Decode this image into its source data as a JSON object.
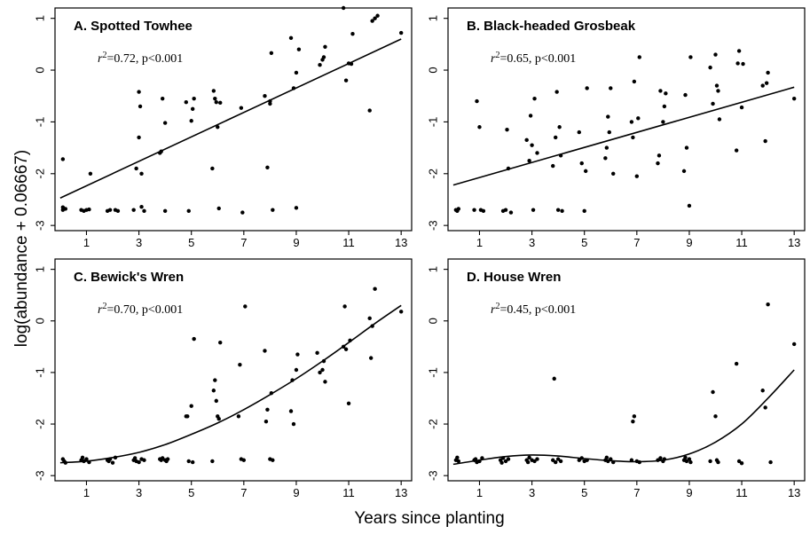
{
  "figure": {
    "ylabel": "log(abundance + 0.06667)",
    "xlabel": "Years since planting"
  },
  "chart_data": [
    {
      "type": "scatter",
      "title": "A.  Spotted Towhee",
      "stat_r2": "=0.72, p<0.001",
      "xlim": [
        -0.2,
        13.4
      ],
      "ylim": [
        -3.1,
        1.2
      ],
      "xticks": [
        1,
        3,
        5,
        7,
        9,
        11,
        13
      ],
      "yticks": [
        1,
        0,
        -1,
        -2,
        -3
      ],
      "fit": {
        "kind": "linear",
        "x": [
          0,
          13
        ],
        "y": [
          -2.47,
          0.6
        ]
      },
      "points": [
        [
          0.1,
          -1.72
        ],
        [
          0.1,
          -2.65
        ],
        [
          0.1,
          -2.7
        ],
        [
          0.2,
          -2.68
        ],
        [
          0.8,
          -2.7
        ],
        [
          0.9,
          -2.72
        ],
        [
          1.0,
          -2.7
        ],
        [
          1.1,
          -2.69
        ],
        [
          1.15,
          -2.0
        ],
        [
          1.8,
          -2.72
        ],
        [
          1.9,
          -2.7
        ],
        [
          2.1,
          -2.7
        ],
        [
          2.2,
          -2.72
        ],
        [
          2.8,
          -2.7
        ],
        [
          2.9,
          -1.9
        ],
        [
          3.0,
          -1.3
        ],
        [
          3.0,
          -0.42
        ],
        [
          3.05,
          -0.7
        ],
        [
          3.1,
          -2.0
        ],
        [
          3.1,
          -2.64
        ],
        [
          3.2,
          -2.72
        ],
        [
          3.8,
          -1.6
        ],
        [
          3.85,
          -1.57
        ],
        [
          3.9,
          -0.55
        ],
        [
          4.0,
          -1.02
        ],
        [
          4.0,
          -2.72
        ],
        [
          4.8,
          -0.62
        ],
        [
          4.9,
          -2.72
        ],
        [
          5.0,
          -0.98
        ],
        [
          5.05,
          -0.75
        ],
        [
          5.1,
          -0.55
        ],
        [
          5.8,
          -1.9
        ],
        [
          5.85,
          -0.4
        ],
        [
          5.9,
          -0.55
        ],
        [
          5.95,
          -0.62
        ],
        [
          6.0,
          -1.1
        ],
        [
          6.1,
          -0.63
        ],
        [
          6.05,
          -2.67
        ],
        [
          6.9,
          -0.73
        ],
        [
          6.95,
          -2.75
        ],
        [
          7.8,
          -0.5
        ],
        [
          7.9,
          -1.88
        ],
        [
          8.0,
          -0.6
        ],
        [
          8.0,
          -0.65
        ],
        [
          8.05,
          0.33
        ],
        [
          8.1,
          -2.7
        ],
        [
          8.8,
          0.62
        ],
        [
          8.9,
          -0.35
        ],
        [
          9.0,
          -0.05
        ],
        [
          9.0,
          -2.66
        ],
        [
          9.1,
          0.4
        ],
        [
          9.9,
          0.1
        ],
        [
          10.0,
          0.2
        ],
        [
          10.05,
          0.25
        ],
        [
          10.1,
          0.45
        ],
        [
          10.8,
          1.2
        ],
        [
          10.9,
          -0.2
        ],
        [
          11.0,
          0.13
        ],
        [
          11.1,
          0.12
        ],
        [
          11.15,
          0.7
        ],
        [
          11.8,
          -0.78
        ],
        [
          11.9,
          0.95
        ],
        [
          12.0,
          1.0
        ],
        [
          12.1,
          1.05
        ],
        [
          13.0,
          0.72
        ]
      ]
    },
    {
      "type": "scatter",
      "title": "B.  Black-headed Grosbeak",
      "stat_r2": "=0.65, p<0.001",
      "xlim": [
        -0.2,
        13.4
      ],
      "ylim": [
        -3.1,
        1.2
      ],
      "xticks": [
        1,
        3,
        5,
        7,
        9,
        11,
        13
      ],
      "yticks": [
        1,
        0,
        -1,
        -2,
        -3
      ],
      "fit": {
        "kind": "linear",
        "x": [
          0,
          13
        ],
        "y": [
          -2.22,
          -0.33
        ]
      },
      "points": [
        [
          0.1,
          -2.7
        ],
        [
          0.15,
          -2.72
        ],
        [
          0.2,
          -2.68
        ],
        [
          0.8,
          -2.7
        ],
        [
          0.9,
          -0.6
        ],
        [
          1.0,
          -1.1
        ],
        [
          1.05,
          -2.7
        ],
        [
          1.15,
          -2.72
        ],
        [
          1.9,
          -2.72
        ],
        [
          2.0,
          -2.7
        ],
        [
          2.05,
          -1.15
        ],
        [
          2.1,
          -1.9
        ],
        [
          2.2,
          -2.75
        ],
        [
          2.8,
          -1.35
        ],
        [
          2.9,
          -1.75
        ],
        [
          2.95,
          -0.88
        ],
        [
          3.0,
          -1.45
        ],
        [
          3.05,
          -2.7
        ],
        [
          3.1,
          -0.55
        ],
        [
          3.2,
          -1.6
        ],
        [
          3.8,
          -1.85
        ],
        [
          3.9,
          -1.3
        ],
        [
          3.95,
          -0.42
        ],
        [
          4.0,
          -2.7
        ],
        [
          4.05,
          -1.1
        ],
        [
          4.1,
          -1.65
        ],
        [
          4.15,
          -2.72
        ],
        [
          4.8,
          -1.2
        ],
        [
          4.9,
          -1.8
        ],
        [
          5.0,
          -2.72
        ],
        [
          5.05,
          -1.95
        ],
        [
          5.1,
          -0.35
        ],
        [
          5.8,
          -1.7
        ],
        [
          5.85,
          -1.5
        ],
        [
          5.9,
          -0.9
        ],
        [
          5.95,
          -1.2
        ],
        [
          6.0,
          -0.35
        ],
        [
          6.1,
          -2.0
        ],
        [
          6.8,
          -1.0
        ],
        [
          6.85,
          -1.3
        ],
        [
          6.9,
          -0.22
        ],
        [
          7.0,
          -2.05
        ],
        [
          7.05,
          -0.93
        ],
        [
          7.1,
          0.25
        ],
        [
          7.8,
          -1.8
        ],
        [
          7.85,
          -1.65
        ],
        [
          7.9,
          -0.4
        ],
        [
          8.0,
          -1.0
        ],
        [
          8.05,
          -0.7
        ],
        [
          8.1,
          -0.45
        ],
        [
          8.8,
          -1.95
        ],
        [
          8.85,
          -0.48
        ],
        [
          8.9,
          -1.5
        ],
        [
          9.0,
          -2.62
        ],
        [
          9.05,
          0.25
        ],
        [
          9.8,
          0.05
        ],
        [
          9.9,
          -0.65
        ],
        [
          10.0,
          0.3
        ],
        [
          10.05,
          -0.3
        ],
        [
          10.1,
          -0.4
        ],
        [
          10.15,
          -0.95
        ],
        [
          10.8,
          -1.55
        ],
        [
          10.85,
          0.13
        ],
        [
          10.9,
          0.37
        ],
        [
          11.0,
          -0.72
        ],
        [
          11.05,
          0.12
        ],
        [
          11.8,
          -0.3
        ],
        [
          11.9,
          -1.37
        ],
        [
          11.95,
          -0.25
        ],
        [
          12.0,
          -0.05
        ],
        [
          13.0,
          -0.55
        ]
      ]
    },
    {
      "type": "scatter",
      "title": "C.  Bewick's Wren",
      "stat_r2": "=0.70, p<0.001",
      "xlim": [
        -0.2,
        13.4
      ],
      "ylim": [
        -3.1,
        1.2
      ],
      "xticks": [
        1,
        3,
        5,
        7,
        9,
        11,
        13
      ],
      "yticks": [
        1,
        0,
        -1,
        -2,
        -3
      ],
      "fit": {
        "kind": "curve",
        "x": [
          0,
          1,
          2,
          3,
          4,
          5,
          6,
          7,
          8,
          9,
          10,
          11,
          12,
          13
        ],
        "y": [
          -2.75,
          -2.72,
          -2.65,
          -2.55,
          -2.4,
          -2.2,
          -1.98,
          -1.72,
          -1.43,
          -1.12,
          -0.78,
          -0.42,
          -0.05,
          0.3
        ]
      },
      "points": [
        [
          0.1,
          -2.68
        ],
        [
          0.15,
          -2.72
        ],
        [
          0.2,
          -2.75
        ],
        [
          0.8,
          -2.7
        ],
        [
          0.85,
          -2.65
        ],
        [
          0.9,
          -2.72
        ],
        [
          1.0,
          -2.68
        ],
        [
          1.1,
          -2.74
        ],
        [
          1.8,
          -2.7
        ],
        [
          1.85,
          -2.72
        ],
        [
          1.9,
          -2.68
        ],
        [
          2.0,
          -2.75
        ],
        [
          2.1,
          -2.65
        ],
        [
          2.8,
          -2.7
        ],
        [
          2.85,
          -2.66
        ],
        [
          2.9,
          -2.72
        ],
        [
          3.0,
          -2.74
        ],
        [
          3.1,
          -2.68
        ],
        [
          3.2,
          -2.7
        ],
        [
          3.8,
          -2.68
        ],
        [
          3.85,
          -2.7
        ],
        [
          3.9,
          -2.66
        ],
        [
          4.0,
          -2.7
        ],
        [
          4.05,
          -2.72
        ],
        [
          4.1,
          -2.68
        ],
        [
          4.8,
          -1.85
        ],
        [
          4.85,
          -1.85
        ],
        [
          4.9,
          -2.72
        ],
        [
          5.0,
          -1.65
        ],
        [
          5.05,
          -2.74
        ],
        [
          5.1,
          -0.35
        ],
        [
          5.8,
          -2.72
        ],
        [
          5.85,
          -1.35
        ],
        [
          5.9,
          -1.15
        ],
        [
          5.95,
          -1.55
        ],
        [
          6.0,
          -1.85
        ],
        [
          6.05,
          -1.9
        ],
        [
          6.1,
          -0.42
        ],
        [
          6.8,
          -1.85
        ],
        [
          6.85,
          -0.85
        ],
        [
          6.9,
          -2.68
        ],
        [
          7.0,
          -2.7
        ],
        [
          7.05,
          0.28
        ],
        [
          7.8,
          -0.58
        ],
        [
          7.85,
          -1.95
        ],
        [
          7.9,
          -1.72
        ],
        [
          8.0,
          -2.68
        ],
        [
          8.05,
          -1.4
        ],
        [
          8.1,
          -2.7
        ],
        [
          8.8,
          -1.75
        ],
        [
          8.85,
          -1.15
        ],
        [
          8.9,
          -2.0
        ],
        [
          9.0,
          -0.95
        ],
        [
          9.05,
          -0.65
        ],
        [
          9.8,
          -0.62
        ],
        [
          9.9,
          -1.0
        ],
        [
          10.0,
          -0.95
        ],
        [
          10.05,
          -0.78
        ],
        [
          10.1,
          -1.18
        ],
        [
          10.8,
          -0.5
        ],
        [
          10.85,
          0.28
        ],
        [
          10.9,
          -0.55
        ],
        [
          11.0,
          -1.6
        ],
        [
          11.05,
          -0.38
        ],
        [
          11.8,
          0.05
        ],
        [
          11.85,
          -0.72
        ],
        [
          11.9,
          -0.1
        ],
        [
          12.0,
          0.62
        ],
        [
          13.0,
          0.18
        ]
      ]
    },
    {
      "type": "scatter",
      "title": "D.  House Wren",
      "stat_r2": "=0.45, p<0.001",
      "xlim": [
        -0.2,
        13.4
      ],
      "ylim": [
        -3.1,
        1.2
      ],
      "xticks": [
        1,
        3,
        5,
        7,
        9,
        11,
        13
      ],
      "yticks": [
        1,
        0,
        -1,
        -2,
        -3
      ],
      "fit": {
        "kind": "curve",
        "x": [
          0,
          1,
          2,
          3,
          4,
          5,
          6,
          7,
          8,
          9,
          10,
          11,
          12,
          13
        ],
        "y": [
          -2.78,
          -2.7,
          -2.63,
          -2.6,
          -2.62,
          -2.67,
          -2.71,
          -2.73,
          -2.7,
          -2.58,
          -2.35,
          -2.0,
          -1.5,
          -0.95
        ]
      },
      "points": [
        [
          0.1,
          -2.7
        ],
        [
          0.15,
          -2.65
        ],
        [
          0.2,
          -2.72
        ],
        [
          0.8,
          -2.7
        ],
        [
          0.85,
          -2.68
        ],
        [
          0.9,
          -2.74
        ],
        [
          1.0,
          -2.72
        ],
        [
          1.1,
          -2.66
        ],
        [
          1.8,
          -2.7
        ],
        [
          1.85,
          -2.75
        ],
        [
          1.9,
          -2.66
        ],
        [
          2.0,
          -2.72
        ],
        [
          2.1,
          -2.68
        ],
        [
          2.8,
          -2.7
        ],
        [
          2.85,
          -2.74
        ],
        [
          2.9,
          -2.65
        ],
        [
          3.0,
          -2.7
        ],
        [
          3.1,
          -2.72
        ],
        [
          3.2,
          -2.68
        ],
        [
          3.8,
          -2.7
        ],
        [
          3.85,
          -1.12
        ],
        [
          3.9,
          -2.74
        ],
        [
          4.0,
          -2.68
        ],
        [
          4.1,
          -2.72
        ],
        [
          4.8,
          -2.7
        ],
        [
          4.9,
          -2.66
        ],
        [
          5.0,
          -2.72
        ],
        [
          5.1,
          -2.7
        ],
        [
          5.8,
          -2.7
        ],
        [
          5.85,
          -2.65
        ],
        [
          5.9,
          -2.72
        ],
        [
          6.0,
          -2.68
        ],
        [
          6.1,
          -2.74
        ],
        [
          6.8,
          -2.7
        ],
        [
          6.85,
          -1.95
        ],
        [
          6.9,
          -1.85
        ],
        [
          7.0,
          -2.72
        ],
        [
          7.1,
          -2.74
        ],
        [
          7.8,
          -2.7
        ],
        [
          7.9,
          -2.66
        ],
        [
          8.0,
          -2.72
        ],
        [
          8.05,
          -2.68
        ],
        [
          8.8,
          -2.7
        ],
        [
          8.85,
          -2.65
        ],
        [
          8.9,
          -2.72
        ],
        [
          9.0,
          -2.68
        ],
        [
          9.05,
          -2.74
        ],
        [
          9.8,
          -2.72
        ],
        [
          9.9,
          -1.38
        ],
        [
          10.0,
          -1.85
        ],
        [
          10.05,
          -2.7
        ],
        [
          10.1,
          -2.74
        ],
        [
          10.8,
          -0.83
        ],
        [
          10.9,
          -2.72
        ],
        [
          11.0,
          -2.76
        ],
        [
          11.8,
          -1.35
        ],
        [
          11.9,
          -1.68
        ],
        [
          12.0,
          0.32
        ],
        [
          12.1,
          -2.74
        ],
        [
          13.0,
          -0.45
        ]
      ]
    }
  ]
}
